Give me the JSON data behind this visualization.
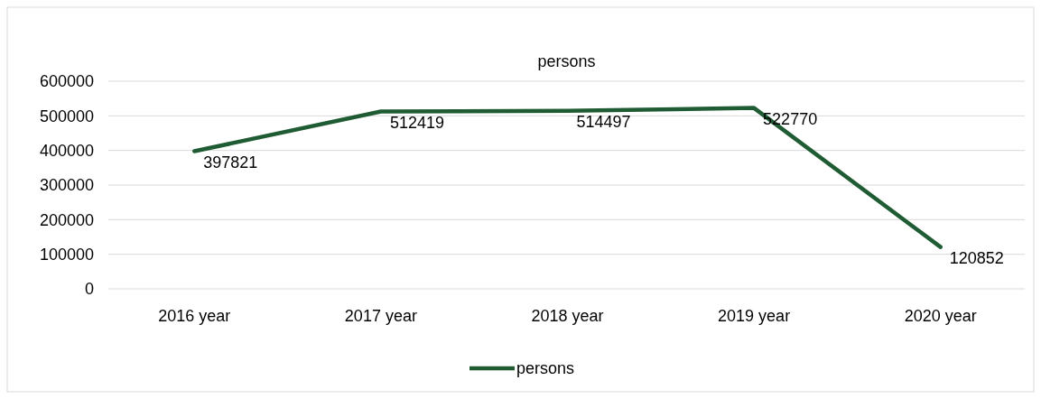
{
  "chart_data": {
    "type": "line",
    "title": "persons",
    "categories": [
      "2016 year",
      "2017 year",
      "2018 year",
      "2019 year",
      "2020 year"
    ],
    "series": [
      {
        "name": "persons",
        "color": "#1f5c33",
        "values": [
          397821,
          512419,
          514497,
          522770,
          120852
        ]
      }
    ],
    "ylim": [
      0,
      600000
    ],
    "yticks": [
      0,
      100000,
      200000,
      300000,
      400000,
      500000,
      600000
    ],
    "grid": "y",
    "legend": "bottom",
    "data_labels": true,
    "marker": "none",
    "line_style": "solid"
  }
}
